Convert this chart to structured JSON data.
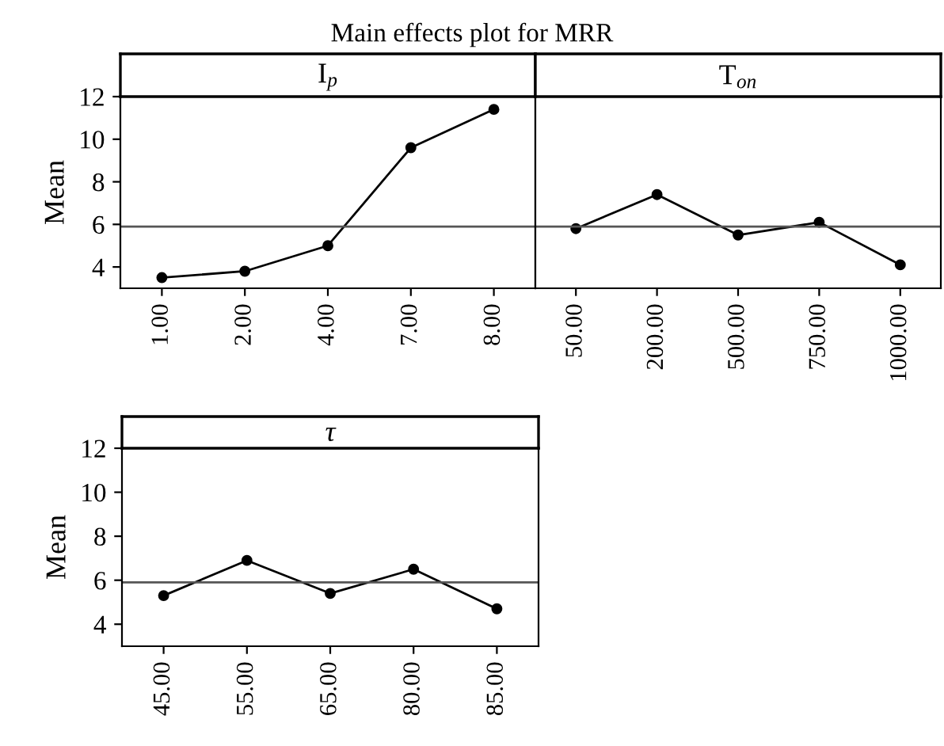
{
  "chart_data": [
    {
      "type": "line",
      "title": "I$_{p}$",
      "ylabel": "Mean",
      "annotations": [
        "Main effects plot for MRR"
      ],
      "categories": [
        "1.00",
        "2.00",
        "4.00",
        "7.00",
        "8.00"
      ],
      "series": [
        {
          "color": "#000000",
          "values": [
            3.5,
            3.8,
            5.0,
            9.6,
            11.4
          ]
        }
      ],
      "ylim": [
        3,
        12
      ],
      "yticks": [
        4,
        6,
        8,
        10,
        12
      ],
      "ref_lines": [
        {
          "axis": "y",
          "value": 5.9,
          "color": "#555555"
        }
      ],
      "marker": "circle",
      "line_style": "solid",
      "grid": false,
      "legend": false
    },
    {
      "type": "line",
      "title": "T$_{on}$",
      "categories": [
        "50.00",
        "200.00",
        "500.00",
        "750.00",
        "1000.00"
      ],
      "series": [
        {
          "color": "#000000",
          "values": [
            5.8,
            7.4,
            5.5,
            6.1,
            4.1
          ]
        }
      ],
      "ylim": [
        3,
        12
      ],
      "yticks": [
        4,
        6,
        8,
        10,
        12
      ],
      "ref_lines": [
        {
          "axis": "y",
          "value": 5.9,
          "color": "#555555"
        }
      ],
      "marker": "circle",
      "line_style": "solid",
      "grid": false,
      "legend": false,
      "tick_labels": "x"
    },
    {
      "type": "line",
      "title": "τ",
      "ylabel": "Mean",
      "categories": [
        "45.00",
        "55.00",
        "65.00",
        "80.00",
        "85.00"
      ],
      "series": [
        {
          "color": "#000000",
          "values": [
            5.3,
            6.9,
            5.4,
            6.5,
            4.7
          ]
        }
      ],
      "ylim": [
        3,
        12
      ],
      "yticks": [
        4,
        6,
        8,
        10,
        12
      ],
      "ref_lines": [
        {
          "axis": "y",
          "value": 5.9,
          "color": "#555555"
        }
      ],
      "marker": "circle",
      "line_style": "solid",
      "grid": false,
      "legend": false
    }
  ]
}
